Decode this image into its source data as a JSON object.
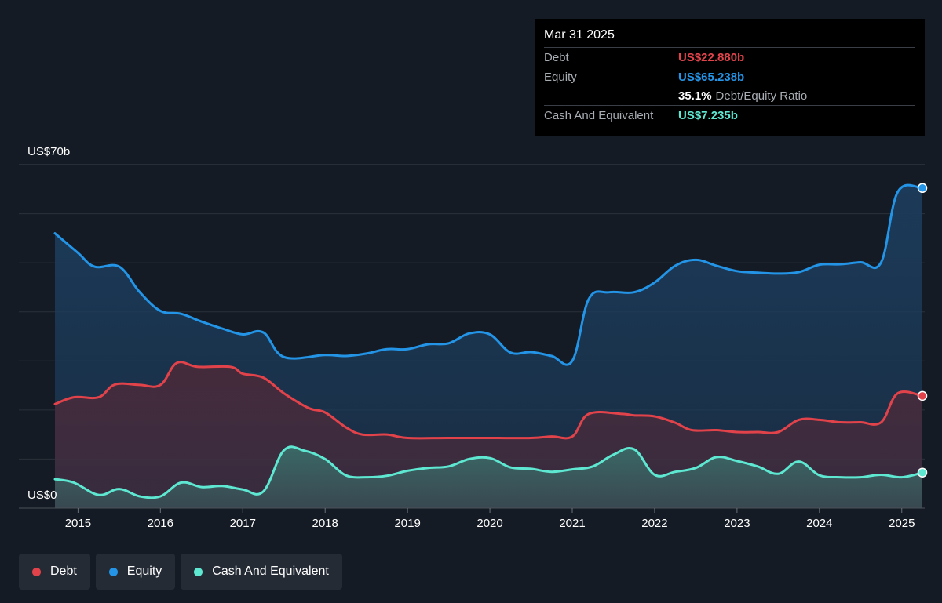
{
  "colors": {
    "debt": "#e2434b",
    "equity": "#2394e6",
    "cash": "#5ee8d2",
    "ratio": "#ffffff",
    "label": "#a8adb3",
    "background": "#151b24"
  },
  "tooltip": {
    "date": "Mar 31 2025",
    "debt_label": "Debt",
    "debt_value": "US$22.880b",
    "equity_label": "Equity",
    "equity_value": "US$65.238b",
    "ratio_value": "35.1%",
    "ratio_label": "Debt/Equity Ratio",
    "cash_label": "Cash And Equivalent",
    "cash_value": "US$7.235b"
  },
  "legend": [
    {
      "label": "Debt",
      "color": "#e2434b"
    },
    {
      "label": "Equity",
      "color": "#2394e6"
    },
    {
      "label": "Cash And Equivalent",
      "color": "#5ee8d2"
    }
  ],
  "chart_data": {
    "type": "area",
    "y_top_label": "US$70b",
    "y_bottom_label": "US$0",
    "ylim": [
      0,
      70
    ],
    "xlim": [
      2014.72,
      2025.25
    ],
    "x_ticks": [
      2015,
      2016,
      2017,
      2018,
      2019,
      2020,
      2021,
      2022,
      2023,
      2024,
      2025
    ],
    "grid": true,
    "legend_position": "bottom-left",
    "series": [
      {
        "name": "Debt",
        "key": "debt",
        "points": [
          [
            2014.72,
            21.2
          ],
          [
            2014.95,
            22.6
          ],
          [
            2015.25,
            22.6
          ],
          [
            2015.45,
            25.2
          ],
          [
            2015.75,
            25.1
          ],
          [
            2016.0,
            25.1
          ],
          [
            2016.2,
            29.6
          ],
          [
            2016.45,
            28.8
          ],
          [
            2016.85,
            28.8
          ],
          [
            2017.0,
            27.4
          ],
          [
            2017.25,
            26.6
          ],
          [
            2017.5,
            23.4
          ],
          [
            2017.8,
            20.4
          ],
          [
            2018.0,
            19.5
          ],
          [
            2018.25,
            16.5
          ],
          [
            2018.45,
            15.0
          ],
          [
            2018.75,
            15.0
          ],
          [
            2019.0,
            14.3
          ],
          [
            2019.5,
            14.3
          ],
          [
            2020.0,
            14.3
          ],
          [
            2020.5,
            14.3
          ],
          [
            2020.75,
            14.6
          ],
          [
            2021.0,
            14.6
          ],
          [
            2021.2,
            19.2
          ],
          [
            2021.6,
            19.2
          ],
          [
            2021.75,
            18.9
          ],
          [
            2022.0,
            18.7
          ],
          [
            2022.25,
            17.4
          ],
          [
            2022.45,
            15.9
          ],
          [
            2022.75,
            15.9
          ],
          [
            2023.0,
            15.5
          ],
          [
            2023.25,
            15.5
          ],
          [
            2023.5,
            15.5
          ],
          [
            2023.75,
            18.0
          ],
          [
            2024.0,
            18.0
          ],
          [
            2024.25,
            17.5
          ],
          [
            2024.5,
            17.5
          ],
          [
            2024.75,
            17.5
          ],
          [
            2024.95,
            23.4
          ],
          [
            2025.25,
            22.88
          ]
        ]
      },
      {
        "name": "Equity",
        "key": "equity",
        "points": [
          [
            2014.72,
            56.0
          ],
          [
            2015.0,
            52.0
          ],
          [
            2015.2,
            49.2
          ],
          [
            2015.5,
            49.2
          ],
          [
            2015.75,
            44.0
          ],
          [
            2016.0,
            40.2
          ],
          [
            2016.25,
            39.6
          ],
          [
            2016.5,
            38.0
          ],
          [
            2016.75,
            36.6
          ],
          [
            2017.0,
            35.4
          ],
          [
            2017.25,
            35.8
          ],
          [
            2017.5,
            30.8
          ],
          [
            2018.0,
            31.2
          ],
          [
            2018.25,
            31.0
          ],
          [
            2018.5,
            31.5
          ],
          [
            2018.75,
            32.4
          ],
          [
            2019.0,
            32.4
          ],
          [
            2019.25,
            33.4
          ],
          [
            2019.5,
            33.6
          ],
          [
            2019.75,
            35.6
          ],
          [
            2020.0,
            35.4
          ],
          [
            2020.25,
            31.7
          ],
          [
            2020.5,
            31.8
          ],
          [
            2020.75,
            31.0
          ],
          [
            2021.0,
            30.0
          ],
          [
            2021.2,
            42.6
          ],
          [
            2021.45,
            44.0
          ],
          [
            2021.75,
            44.0
          ],
          [
            2022.0,
            46.0
          ],
          [
            2022.25,
            49.4
          ],
          [
            2022.5,
            50.6
          ],
          [
            2022.75,
            49.4
          ],
          [
            2023.0,
            48.3
          ],
          [
            2023.25,
            48.0
          ],
          [
            2023.5,
            47.8
          ],
          [
            2023.75,
            48.1
          ],
          [
            2024.0,
            49.6
          ],
          [
            2024.25,
            49.7
          ],
          [
            2024.5,
            50.1
          ],
          [
            2024.75,
            50.1
          ],
          [
            2024.95,
            64.4
          ],
          [
            2025.25,
            65.238
          ]
        ]
      },
      {
        "name": "Cash And Equivalent",
        "key": "cash",
        "points": [
          [
            2014.72,
            5.9
          ],
          [
            2014.95,
            5.2
          ],
          [
            2015.25,
            2.7
          ],
          [
            2015.5,
            3.9
          ],
          [
            2015.75,
            2.4
          ],
          [
            2016.0,
            2.4
          ],
          [
            2016.25,
            5.2
          ],
          [
            2016.5,
            4.3
          ],
          [
            2016.75,
            4.5
          ],
          [
            2017.0,
            3.8
          ],
          [
            2017.25,
            3.4
          ],
          [
            2017.5,
            11.8
          ],
          [
            2017.75,
            11.7
          ],
          [
            2018.0,
            10.0
          ],
          [
            2018.25,
            6.7
          ],
          [
            2018.5,
            6.3
          ],
          [
            2018.75,
            6.6
          ],
          [
            2019.0,
            7.6
          ],
          [
            2019.25,
            8.2
          ],
          [
            2019.5,
            8.5
          ],
          [
            2019.75,
            10.0
          ],
          [
            2020.0,
            10.2
          ],
          [
            2020.25,
            8.3
          ],
          [
            2020.5,
            8.0
          ],
          [
            2020.75,
            7.4
          ],
          [
            2021.0,
            7.9
          ],
          [
            2021.25,
            8.5
          ],
          [
            2021.5,
            10.9
          ],
          [
            2021.75,
            12.0
          ],
          [
            2022.0,
            6.8
          ],
          [
            2022.25,
            7.4
          ],
          [
            2022.5,
            8.2
          ],
          [
            2022.75,
            10.4
          ],
          [
            2023.0,
            9.6
          ],
          [
            2023.25,
            8.5
          ],
          [
            2023.5,
            7.0
          ],
          [
            2023.75,
            9.5
          ],
          [
            2024.0,
            6.7
          ],
          [
            2024.25,
            6.3
          ],
          [
            2024.5,
            6.3
          ],
          [
            2024.75,
            6.8
          ],
          [
            2025.0,
            6.3
          ],
          [
            2025.25,
            7.235
          ]
        ]
      }
    ]
  }
}
